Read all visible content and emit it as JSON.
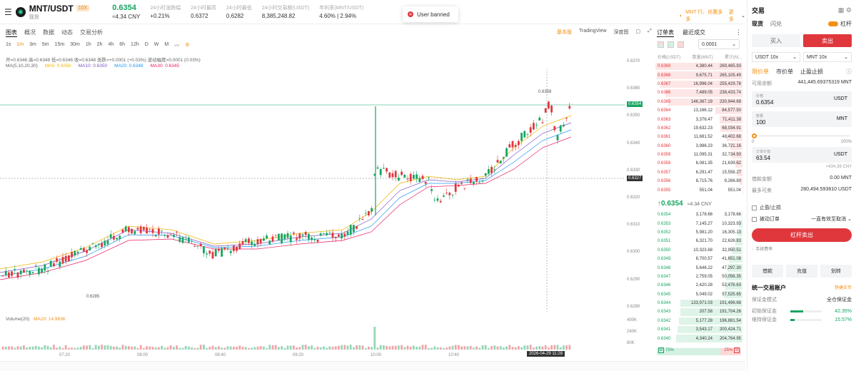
{
  "header": {
    "pair": "MNT/USDT",
    "leverage": "10X",
    "subtitle": "现货",
    "price": "0.6354",
    "price_cny": "≈4.34 CNY",
    "stats": [
      {
        "k": "24小时涨跌幅",
        "v": "+0.21%"
      },
      {
        "k": "24小时最高",
        "v": "0.6372"
      },
      {
        "k": "24小时最低",
        "v": "0.6282"
      },
      {
        "k": "24小时交易额(USDT)",
        "v": "8,385,248.82"
      },
      {
        "k": "年利率(MNT/USDT)",
        "v": "4.60% | 2.94%"
      }
    ],
    "promo": "MNT 行、优惠多多",
    "more": "更多"
  },
  "toast": {
    "text": "User banned"
  },
  "chart": {
    "tabs": [
      "图表",
      "概况",
      "数据",
      "动态",
      "交易分析"
    ],
    "right": [
      "基本版",
      "TradingView",
      "深度图"
    ],
    "timeframes": [
      "1s",
      "1m",
      "3m",
      "5m",
      "15m",
      "30m",
      "1h",
      "2h",
      "4h",
      "6h",
      "12h",
      "D",
      "W",
      "M"
    ],
    "ohlc": "开=0.6346  高=0.6348  低=0.6346  收=0.6348  涨跌=+0.0001 (+0.03%)  波动幅度=0.0001 (0.03%)",
    "ma_label": "MA(5,10,20,30)",
    "ma": [
      "MA5: 0.6350",
      "MA10: 0.6350",
      "MA20: 0.6348",
      "MA30: 0.6345"
    ],
    "y_ticks": [
      "0.6370",
      "0.6360",
      "0.6350",
      "0.6340",
      "0.6330",
      "0.6320",
      "0.6310",
      "0.6300",
      "0.6290",
      "0.6280"
    ],
    "current_price": "0.6354",
    "cross_price": "0.6327",
    "high_mark": "0.6358",
    "low_mark": "0.6285",
    "volume_label": "Volume(20)",
    "volume_ma": "MA20: 14.993K",
    "vol_ticks": [
      "400K",
      "240K",
      "80K"
    ],
    "x_ticks": [
      "07:20",
      "08:00",
      "08:40",
      "09:20",
      "10:00",
      "10:40"
    ],
    "cross_time": "2026-04-29 11:28"
  },
  "orderbook": {
    "tabs": [
      "订单表",
      "最近成交"
    ],
    "step": "0.0001",
    "headers": [
      "价格(USDT)",
      "数量(MNT)",
      "累计(M..."
    ],
    "asks": [
      [
        "0.6369",
        "4,380.44",
        "269,485.93"
      ],
      [
        "0.6368",
        "9,675.71",
        "265,105.49"
      ],
      [
        "0.6367",
        "16,996.04",
        "255,429.78"
      ],
      [
        "0.6366",
        "7,489.05",
        "238,433.74"
      ],
      [
        "0.6365",
        "146,367.19",
        "230,944.69"
      ],
      [
        "0.6364",
        "13,166.12",
        "84,577.50"
      ],
      [
        "0.6363",
        "3,376.47",
        "71,411.38"
      ],
      [
        "0.6362",
        "19,632.23",
        "68,034.91"
      ],
      [
        "0.6361",
        "11,681.52",
        "48,402.68"
      ],
      [
        "0.6360",
        "3,986.23",
        "36,721.16"
      ],
      [
        "0.6359",
        "11,095.31",
        "32,734.93"
      ],
      [
        "0.6358",
        "6,081.35",
        "21,639.62"
      ],
      [
        "0.6357",
        "6,291.47",
        "15,558.27"
      ],
      [
        "0.6356",
        "8,715.76",
        "9,266.80"
      ],
      [
        "0.6355",
        "551.04",
        "551.04"
      ]
    ],
    "mid_price": "↑0.6354",
    "mid_cny": "≈4.34 CNY",
    "bids": [
      [
        "0.6354",
        "3,178.66",
        "3,178.66"
      ],
      [
        "0.6353",
        "7,145.27",
        "10,323.93"
      ],
      [
        "0.6352",
        "5,981.20",
        "16,305.13"
      ],
      [
        "0.6351",
        "6,321.70",
        "22,626.83"
      ],
      [
        "0.6350",
        "10,323.68",
        "32,950.51"
      ],
      [
        "0.6349",
        "8,700.57",
        "41,651.08"
      ],
      [
        "0.6348",
        "5,646.22",
        "47,297.30"
      ],
      [
        "0.6347",
        "2,759.05",
        "50,056.35"
      ],
      [
        "0.6346",
        "2,420.28",
        "52,476.63"
      ],
      [
        "0.6345",
        "5,049.02",
        "57,525.65"
      ],
      [
        "0.6344",
        "133,971.03",
        "191,496.68"
      ],
      [
        "0.6343",
        "207.58",
        "191,704.26"
      ],
      [
        "0.6342",
        "5,177.28",
        "196,881.54"
      ],
      [
        "0.6341",
        "3,543.17",
        "200,424.71"
      ],
      [
        "0.6340",
        "4,340.24",
        "204,764.95"
      ]
    ],
    "buy_pct": "75%",
    "sell_pct": "25%"
  },
  "panel": {
    "title": "交易",
    "modes": [
      "现货",
      "闪兑"
    ],
    "margin_toggle": "杠杆",
    "buy": "买入",
    "sell": "卖出",
    "sel1": "USDT 10x",
    "sel2": "MNT 10x",
    "order_types": [
      "限价单",
      "市价单",
      "止盈止损"
    ],
    "available_label": "可用余额",
    "available": "441,445.69375319 MNT",
    "price_label": "价格",
    "price": "0.6354",
    "price_unit": "USDT",
    "qty_label": "数量",
    "qty": "100",
    "qty_unit": "MNT",
    "slider_min": "0",
    "slider_max": "100%",
    "amount_label": "订单价值",
    "amount": "63.54",
    "amount_unit": "USDT",
    "amount_cny": "≈434.39 CNY",
    "borrow_label": "借款金额",
    "borrow": "0.00 MNT",
    "maxsell_label": "最多可卖",
    "maxsell": "280,494.593810 USDT",
    "tpsl": "止盈/止损",
    "passive": "被动订单",
    "tif": "一直有效至取消",
    "submit": "杠杆卖出",
    "fee": "手续费率",
    "actions": [
      "借款",
      "充值",
      "划转"
    ],
    "account_title": "统一交易账户",
    "quick": "快捷买币",
    "margin_mode_label": "保证金模式",
    "margin_mode": "全仓保证金",
    "im_label": "初始保证金",
    "im": "42.35%",
    "mm_label": "维持保证金",
    "mm": "15.57%"
  }
}
